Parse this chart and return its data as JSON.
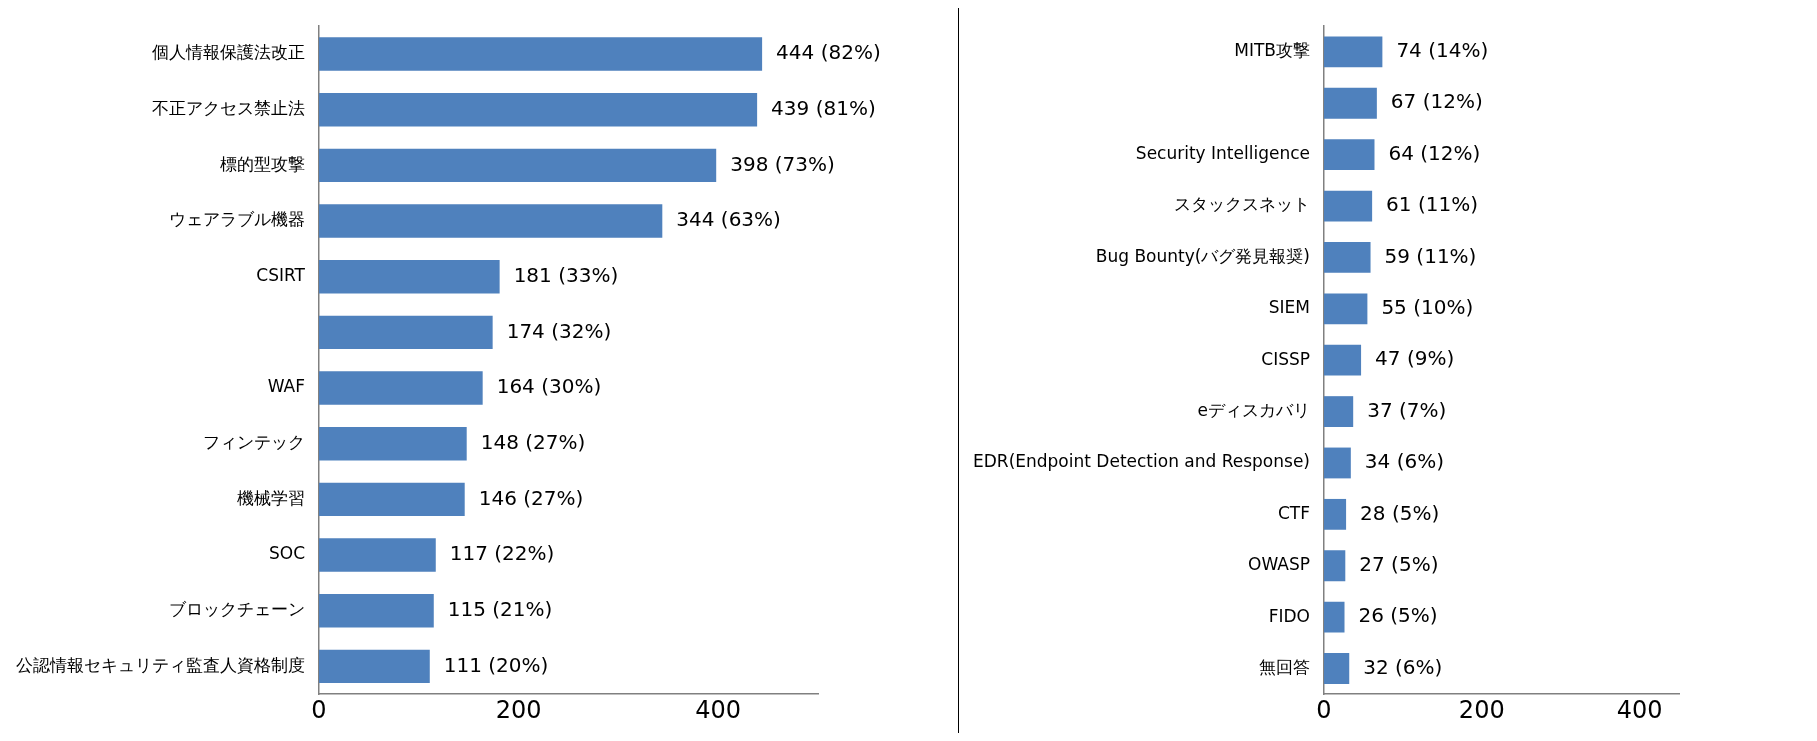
{
  "chart_data": [
    {
      "type": "bar",
      "orientation": "horizontal",
      "categories": [
        "個人情報保護法改正",
        "不正アクセス禁止法",
        "標的型攻撃",
        "ウェアラブル機器",
        "CSIRT",
        null,
        "WAF",
        "フィンテック",
        "機械学習",
        "SOC",
        "ブロックチェーン",
        "公認情報セキュリティ監査人資格制度"
      ],
      "values": [
        444,
        439,
        398,
        344,
        181,
        174,
        164,
        148,
        146,
        117,
        115,
        111
      ],
      "value_labels": [
        "444 (82%)",
        "439 (81%)",
        "398 (73%)",
        "344 (63%)",
        "181 (33%)",
        "174 (32%)",
        "164 (30%)",
        "148 (27%)",
        "146 (27%)",
        "117 (22%)",
        "115 (21%)",
        "111 (20%)"
      ],
      "color": "#4f81bd",
      "xlim": [
        0,
        500
      ],
      "xticks": [
        0,
        200,
        400
      ],
      "grid": false,
      "legend": false
    },
    {
      "type": "bar",
      "orientation": "horizontal",
      "categories": [
        "MITB攻撃",
        null,
        "Security Intelligence",
        "スタックスネット",
        "Bug Bounty(バグ発見報奨)",
        "SIEM",
        "CISSP",
        "eディスカバリ",
        "EDR(Endpoint Detection and Response)",
        "CTF",
        "OWASP",
        "FIDO",
        "無回答"
      ],
      "values": [
        74,
        67,
        64,
        61,
        59,
        55,
        47,
        37,
        34,
        28,
        27,
        26,
        32
      ],
      "value_labels": [
        "74 (14%)",
        "67 (12%)",
        "64 (12%)",
        "61 (11%)",
        "59 (11%)",
        "55 (10%)",
        "47 (9%)",
        "37 (7%)",
        "34 (6%)",
        "28 (5%)",
        "27 (5%)",
        "26 (5%)",
        "32 (6%)"
      ],
      "color": "#4f81bd",
      "xlim": [
        0,
        450
      ],
      "xticks": [
        0,
        200,
        400
      ],
      "grid": false,
      "legend": false
    }
  ]
}
